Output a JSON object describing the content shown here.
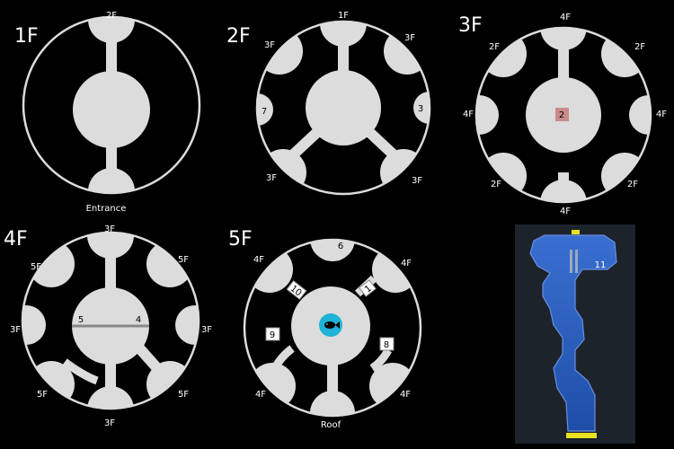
{
  "floors": {
    "f1": {
      "title": "1F",
      "top_label": "2F",
      "bottom_label": "Entrance"
    },
    "f2": {
      "title": "2F",
      "top": "1F",
      "upper_left": "3F",
      "upper_right": "3F",
      "left": "7",
      "right": "3",
      "lower_left": "3F",
      "lower_right": "3F"
    },
    "f3": {
      "title": "3F",
      "top": "4F",
      "upper_left": "2F",
      "upper_right": "2F",
      "left": "4F",
      "right": "4F",
      "lower_left": "2F",
      "lower_right": "2F",
      "bottom": "4F",
      "center_marker": "2"
    },
    "f4": {
      "title": "4F",
      "top": "3F",
      "upper_left": "5F",
      "upper_right": "5F",
      "left": "3F",
      "right": "3F",
      "lower_left": "5F",
      "lower_right": "5F",
      "bottom": "3F",
      "marker_left": "5",
      "marker_right": "4"
    },
    "f5": {
      "title": "5F",
      "top_room": "6",
      "upper_left": "4F",
      "upper_right": "4F",
      "lower_left": "4F",
      "lower_right": "4F",
      "bottom": "Roof",
      "marker_10": "10",
      "marker_1": "1",
      "marker_9": "9",
      "marker_8": "8"
    }
  },
  "minimap": {
    "label": "11"
  },
  "colors": {
    "room": "#dcdcdc",
    "marker_red": "#c98a8a",
    "fish_ring": "#1fb3d8",
    "minimap_blue": "#2a5fc0",
    "exit_yellow": "#e8e020"
  },
  "icons": {
    "fish": "fish-icon"
  }
}
